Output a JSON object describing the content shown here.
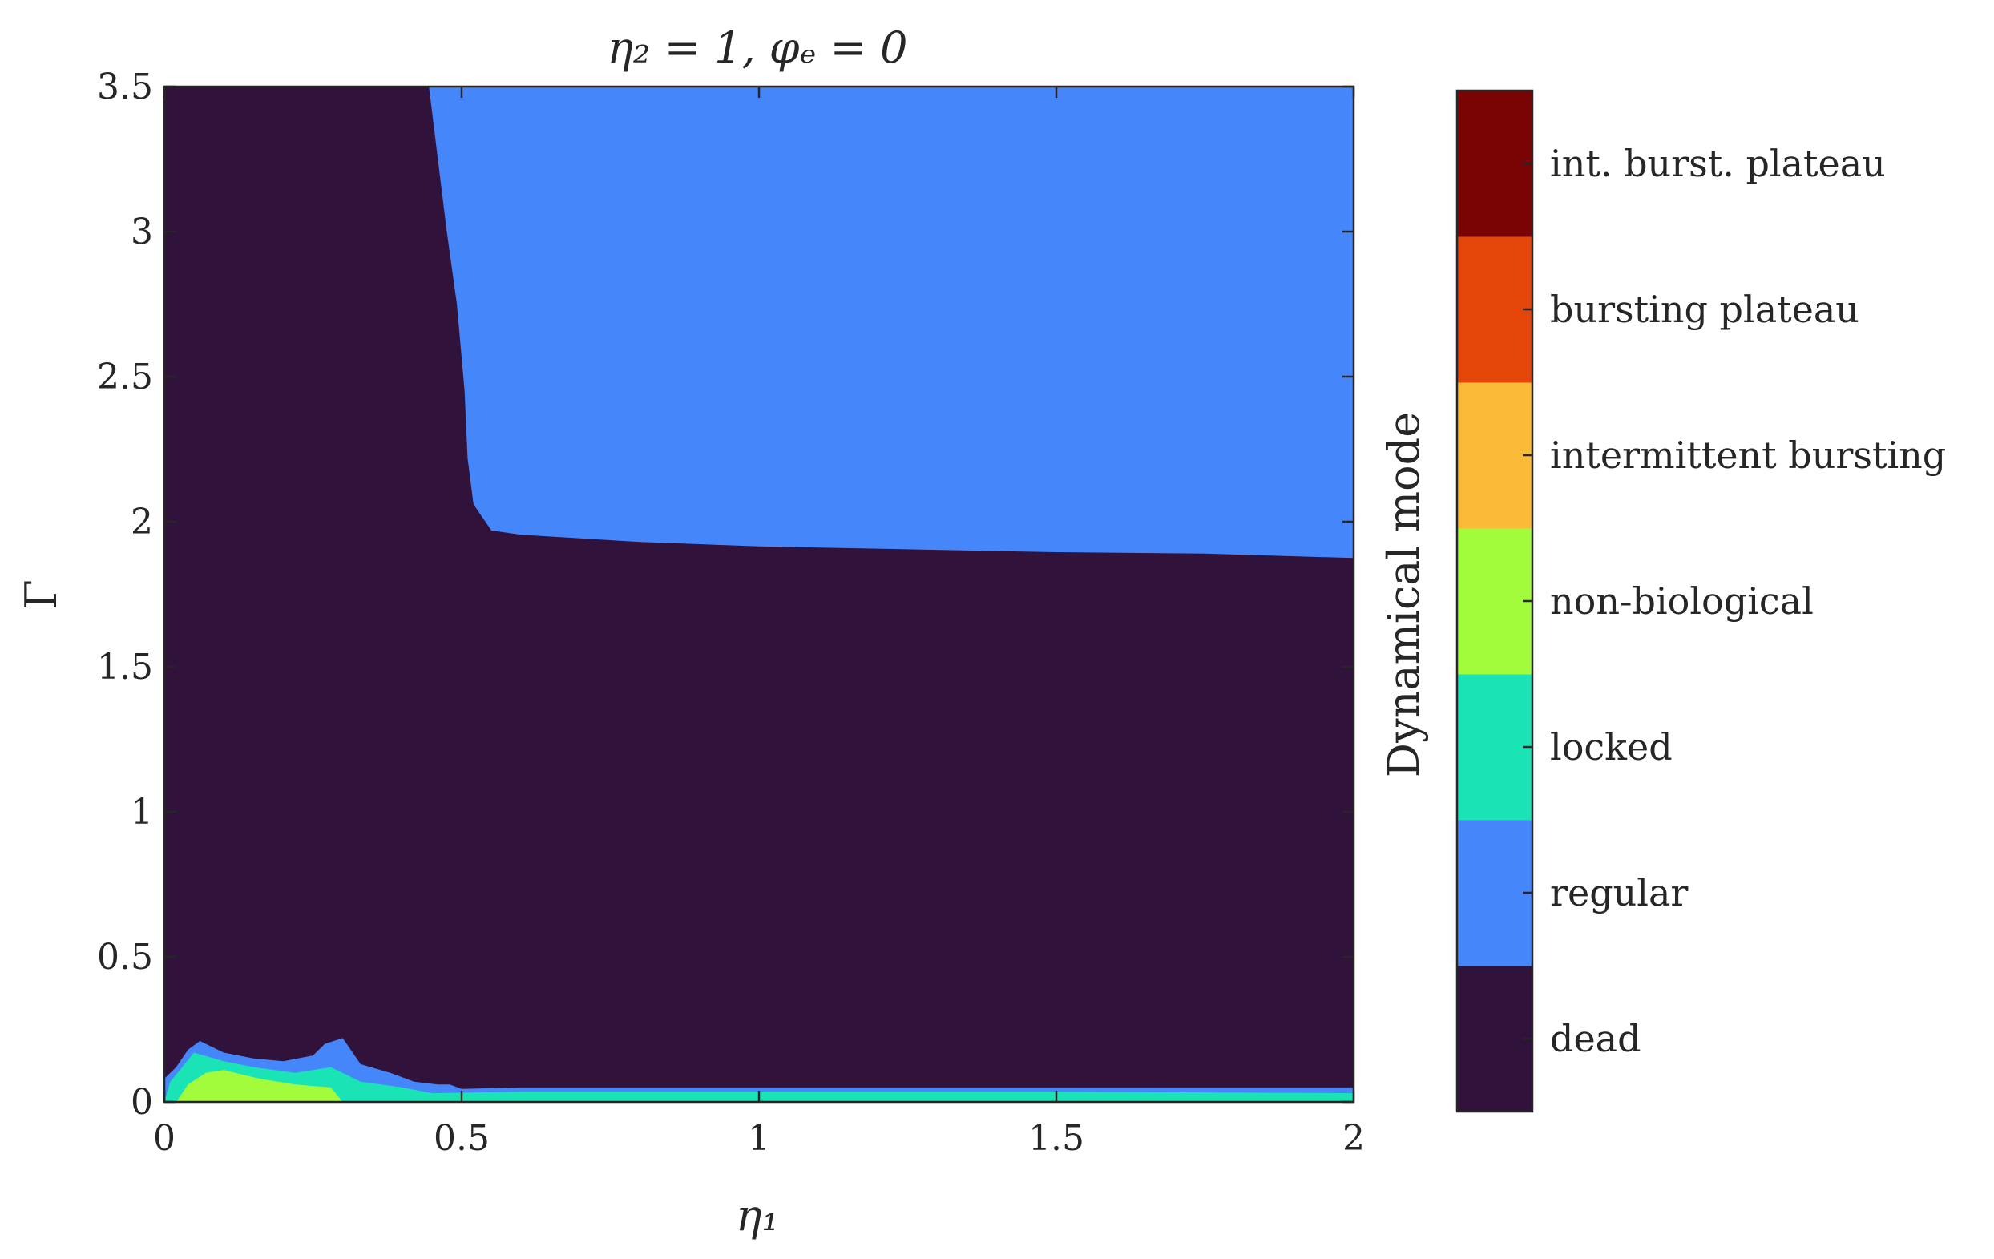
{
  "chart_data": {
    "type": "heatmap",
    "title": "η₂ = 1, φₑ = 0",
    "xlabel": "η₁",
    "ylabel": "Γ",
    "xlim": [
      0,
      2
    ],
    "ylim": [
      0,
      3.5
    ],
    "x_ticks": [
      0,
      0.5,
      1,
      1.5,
      2
    ],
    "x_tick_labels": [
      "0",
      "0.5",
      "1",
      "1.5",
      "2"
    ],
    "y_ticks": [
      0,
      0.5,
      1,
      1.5,
      2,
      2.5,
      3,
      3.5
    ],
    "y_tick_labels": [
      "0",
      "0.5",
      "1",
      "1.5",
      "2",
      "2.5",
      "3",
      "3.5"
    ],
    "grid": false,
    "background_mode": "dead",
    "colorbar": {
      "label": "Dynamical mode",
      "categories": [
        {
          "key": "dead",
          "label": "dead",
          "color": "#30123b"
        },
        {
          "key": "regular",
          "label": "regular",
          "color": "#4686fb"
        },
        {
          "key": "locked",
          "label": "locked",
          "color": "#1ae4b6"
        },
        {
          "key": "non_biological",
          "label": "non-biological",
          "color": "#a2fc3c"
        },
        {
          "key": "intermittent_bursting",
          "label": "intermittent bursting",
          "color": "#f9ba38"
        },
        {
          "key": "bursting_plateau",
          "label": "bursting plateau",
          "color": "#e4460a"
        },
        {
          "key": "int_burst_plateau",
          "label": "int. burst. plateau",
          "color": "#7a0403"
        }
      ]
    },
    "regions": [
      {
        "mode": "regular",
        "description_points_eta1_gamma": [
          [
            0.445,
            3.5
          ],
          [
            0.457,
            3.3
          ],
          [
            0.475,
            3.0
          ],
          [
            0.492,
            2.75
          ],
          [
            0.505,
            2.45
          ],
          [
            0.51,
            2.22
          ],
          [
            0.52,
            2.06
          ],
          [
            0.55,
            1.97
          ],
          [
            0.6,
            1.955
          ],
          [
            0.8,
            1.93
          ],
          [
            1.0,
            1.915
          ],
          [
            1.25,
            1.905
          ],
          [
            1.5,
            1.895
          ],
          [
            1.75,
            1.89
          ],
          [
            2.0,
            1.875
          ],
          [
            2.0,
            3.5
          ]
        ]
      },
      {
        "mode": "regular",
        "description_points_eta1_gamma": [
          [
            0.0,
            0.0
          ],
          [
            2.0,
            0.0
          ],
          [
            2.0,
            0.05
          ],
          [
            1.55,
            0.05
          ],
          [
            0.6,
            0.05
          ],
          [
            0.5,
            0.045
          ],
          [
            0.48,
            0.06
          ],
          [
            0.46,
            0.06
          ],
          [
            0.42,
            0.07
          ],
          [
            0.38,
            0.1
          ],
          [
            0.33,
            0.13
          ],
          [
            0.3,
            0.22
          ],
          [
            0.27,
            0.2
          ],
          [
            0.25,
            0.16
          ],
          [
            0.2,
            0.14
          ],
          [
            0.15,
            0.15
          ],
          [
            0.1,
            0.17
          ],
          [
            0.06,
            0.21
          ],
          [
            0.04,
            0.18
          ],
          [
            0.02,
            0.12
          ],
          [
            0.0,
            0.08
          ]
        ]
      },
      {
        "mode": "locked",
        "description_points_eta1_gamma": [
          [
            0.0,
            0.0
          ],
          [
            2.0,
            0.0
          ],
          [
            2.0,
            0.03
          ],
          [
            1.5,
            0.035
          ],
          [
            0.6,
            0.035
          ],
          [
            0.45,
            0.03
          ],
          [
            0.4,
            0.05
          ],
          [
            0.33,
            0.07
          ],
          [
            0.28,
            0.12
          ],
          [
            0.22,
            0.1
          ],
          [
            0.15,
            0.12
          ],
          [
            0.1,
            0.14
          ],
          [
            0.05,
            0.17
          ],
          [
            0.03,
            0.12
          ],
          [
            0.01,
            0.07
          ]
        ]
      },
      {
        "mode": "non_biological",
        "description_points_eta1_gamma": [
          [
            0.02,
            0.0
          ],
          [
            0.3,
            0.0
          ],
          [
            0.28,
            0.05
          ],
          [
            0.22,
            0.06
          ],
          [
            0.16,
            0.08
          ],
          [
            0.1,
            0.11
          ],
          [
            0.07,
            0.1
          ],
          [
            0.04,
            0.06
          ]
        ]
      }
    ]
  }
}
